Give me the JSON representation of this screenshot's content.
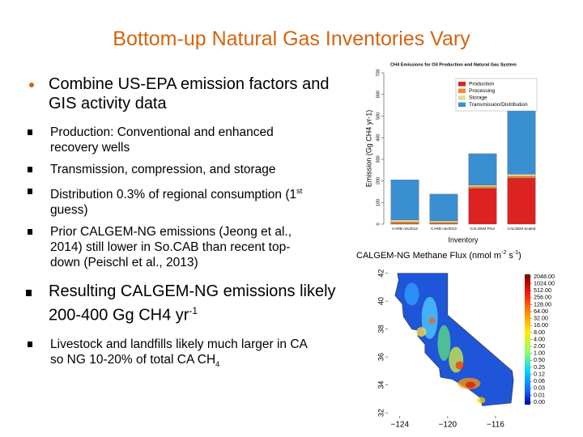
{
  "title": "Bottom-up Natural Gas Inventories Vary",
  "bullets": [
    {
      "text": "Combine US-EPA emission factors and GIS activity data",
      "subs": [
        {
          "text": "Production: Conventional and enhanced recovery wells"
        },
        {
          "text": "Transmission, compression, and storage"
        },
        {
          "text": "Distribution 0.3% of regional consumption (1",
          "sup": "st",
          "tail": " guess)"
        },
        {
          "text": "Prior CALGEM-NG emissions (Jeong et al., 2014) still lower in So.CAB than recent top-down (Peischl et al., 2013)"
        }
      ]
    },
    {
      "text": "Resulting CALGEM-NG emissions likely 200-400 Gg CH4 yr",
      "sup": "-1",
      "subs": [
        {
          "text": "Livestock and landfills likely much larger in CA  so NG 10-20% of total CA CH",
          "sub": "4"
        }
      ]
    }
  ],
  "chart_data": [
    {
      "type": "bar",
      "stacked": true,
      "title": "CH4 Emissions for Oil Production and Natural Gas System",
      "y_label": "Emission (Gg CH4 yr-1)",
      "x_label": "Inventory",
      "categories": [
        "CARB nov2012",
        "CARB nov2013",
        "CALGEM Prior",
        "CALGEM Scaled"
      ],
      "series": [
        {
          "name": "Production",
          "color": "#dd2222",
          "values": [
            2,
            2,
            165,
            213
          ]
        },
        {
          "name": "Processing",
          "color": "#f08a2a",
          "values": [
            8,
            6,
            8,
            8
          ]
        },
        {
          "name": "Storage",
          "color": "#e6d9a2",
          "values": [
            10,
            8,
            8,
            10
          ]
        },
        {
          "name": "Transmission/Distribution",
          "color": "#3a8fd0",
          "values": [
            185,
            123,
            145,
            300
          ]
        }
      ],
      "ylim": [
        0,
        700
      ],
      "yticks": [
        0,
        100,
        200,
        300,
        400,
        500,
        600,
        700
      ],
      "legend": "top-right"
    },
    {
      "type": "map",
      "title_parts": [
        {
          "text": "CALGEM-NG Methane Flux (nmol m"
        },
        {
          "text": "-2",
          "sup": true
        },
        {
          "text": " s"
        },
        {
          "text": "-1",
          "sup": true
        },
        {
          "text": ")"
        }
      ],
      "xlim": [
        -125,
        -114
      ],
      "ylim": [
        31.6,
        42.5
      ],
      "xticks": [
        {
          "value": -124,
          "label": "−124"
        },
        {
          "value": -120,
          "label": "−120"
        },
        {
          "value": -116,
          "label": "−116"
        }
      ],
      "yticks": [
        32,
        34,
        36,
        38,
        40,
        42
      ],
      "colorbar_ticks": [
        {
          "value": 2048,
          "label": "2048.00"
        },
        {
          "value": 1024,
          "label": "1024.00"
        },
        {
          "value": 512,
          "label": "512.00"
        },
        {
          "value": 256,
          "label": "256.00"
        },
        {
          "value": 128,
          "label": "128.00"
        },
        {
          "value": 64,
          "label": "64.00"
        },
        {
          "value": 32,
          "label": "32.00"
        },
        {
          "value": 16,
          "label": "16.00"
        },
        {
          "value": 8,
          "label": "8.00"
        },
        {
          "value": 4,
          "label": "4.00"
        },
        {
          "value": 2,
          "label": "2.00"
        },
        {
          "value": 1,
          "label": "1.00"
        },
        {
          "value": 0.5,
          "label": "0.50"
        },
        {
          "value": 0.25,
          "label": "0.25"
        },
        {
          "value": 0.12,
          "label": "0.12"
        },
        {
          "value": 0.06,
          "label": "0.06"
        },
        {
          "value": 0.03,
          "label": "0.03"
        },
        {
          "value": 0.01,
          "label": "0.01"
        },
        {
          "value": 0,
          "label": "0.00"
        }
      ]
    }
  ]
}
